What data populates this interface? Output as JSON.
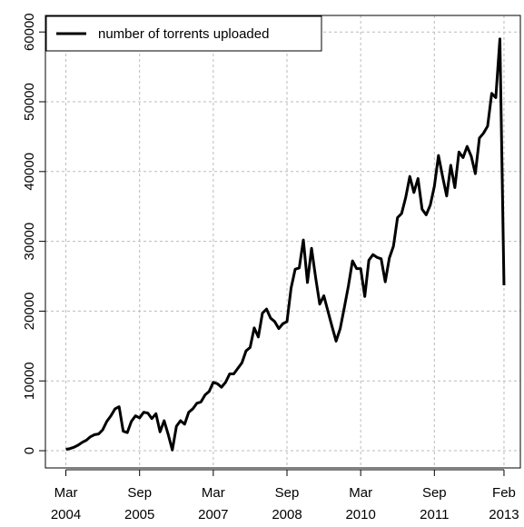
{
  "chart_data": {
    "type": "line",
    "x": [
      "2004-03",
      "2004-04",
      "2004-05",
      "2004-06",
      "2004-07",
      "2004-08",
      "2004-09",
      "2004-10",
      "2004-11",
      "2004-12",
      "2005-01",
      "2005-02",
      "2005-03",
      "2005-04",
      "2005-05",
      "2005-06",
      "2005-07",
      "2005-08",
      "2005-09",
      "2005-10",
      "2005-11",
      "2005-12",
      "2006-01",
      "2006-02",
      "2006-03",
      "2006-04",
      "2006-05",
      "2006-06",
      "2006-07",
      "2006-08",
      "2006-09",
      "2006-10",
      "2006-11",
      "2006-12",
      "2007-01",
      "2007-02",
      "2007-03",
      "2007-04",
      "2007-05",
      "2007-06",
      "2007-07",
      "2007-08",
      "2007-09",
      "2007-10",
      "2007-11",
      "2007-12",
      "2008-01",
      "2008-02",
      "2008-03",
      "2008-04",
      "2008-05",
      "2008-06",
      "2008-07",
      "2008-08",
      "2008-09",
      "2008-10",
      "2008-11",
      "2008-12",
      "2009-01",
      "2009-02",
      "2009-03",
      "2009-04",
      "2009-05",
      "2009-06",
      "2009-07",
      "2009-08",
      "2009-09",
      "2009-10",
      "2009-11",
      "2009-12",
      "2010-01",
      "2010-02",
      "2010-03",
      "2010-04",
      "2010-05",
      "2010-06",
      "2010-07",
      "2010-08",
      "2010-09",
      "2010-10",
      "2010-11",
      "2010-12",
      "2011-01",
      "2011-02",
      "2011-03",
      "2011-04",
      "2011-05",
      "2011-06",
      "2011-07",
      "2011-08",
      "2011-09",
      "2011-10",
      "2011-11",
      "2011-12",
      "2012-01",
      "2012-02",
      "2012-03",
      "2012-04",
      "2012-05",
      "2012-06",
      "2012-07",
      "2012-08",
      "2012-09",
      "2012-10",
      "2012-11",
      "2012-12",
      "2013-01",
      "2013-02"
    ],
    "series": [
      {
        "name": "number of torrents uploaded",
        "color": "#000000",
        "values": [
          200,
          300,
          500,
          800,
          1200,
          1500,
          2000,
          2300,
          2400,
          3000,
          4200,
          5000,
          6000,
          6300,
          2800,
          2600,
          4200,
          5000,
          4700,
          5500,
          5400,
          4600,
          5300,
          2700,
          4300,
          2300,
          100,
          3500,
          4300,
          3800,
          5500,
          6000,
          6800,
          7000,
          8000,
          8500,
          9800,
          9600,
          9100,
          9800,
          11000,
          11000,
          11800,
          12600,
          14300,
          14800,
          17600,
          16300,
          19700,
          20300,
          19000,
          18500,
          17500,
          18200,
          18500,
          23300,
          26000,
          26200,
          30200,
          24100,
          29000,
          24800,
          21000,
          22200,
          20000,
          17800,
          15700,
          17500,
          20500,
          23600,
          27200,
          26100,
          26100,
          22100,
          27300,
          28100,
          27700,
          27500,
          24200,
          27600,
          29300,
          33400,
          34000,
          36300,
          39300,
          37000,
          39000,
          34600,
          33800,
          35200,
          37900,
          42300,
          39300,
          36500,
          40900,
          37700,
          42800,
          42000,
          43600,
          42200,
          39700,
          44800,
          45500,
          46500,
          51200,
          50600,
          59000,
          23700
        ]
      }
    ],
    "xlim": [
      "2003-10",
      "2013-06"
    ],
    "xticks": [
      {
        "value": "2004-03",
        "label": "Mar\n2004"
      },
      {
        "value": "2005-09",
        "label": "Sep\n2005"
      },
      {
        "value": "2007-03",
        "label": "Mar\n2007"
      },
      {
        "value": "2008-09",
        "label": "Sep\n2008"
      },
      {
        "value": "2010-03",
        "label": "Mar\n2010"
      },
      {
        "value": "2011-09",
        "label": "Sep\n2011"
      },
      {
        "value": "2013-02",
        "label": "Feb\n2013"
      }
    ],
    "ylim": [
      -2470,
      62370
    ],
    "yticks": [
      0,
      10000,
      20000,
      30000,
      40000,
      50000,
      60000
    ],
    "grid": true,
    "legend": "topleft"
  }
}
